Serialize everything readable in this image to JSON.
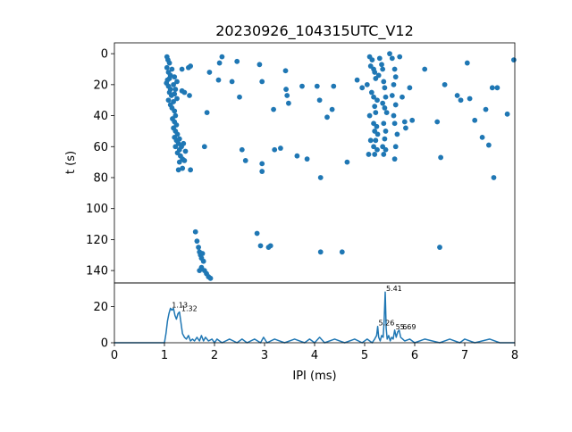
{
  "chart_data": [
    {
      "type": "scatter",
      "title": "20230926_104315UTC_V12",
      "ylabel": "t (s)",
      "xlim": [
        0,
        8
      ],
      "ylim": [
        148,
        -7
      ],
      "y_inverted": true,
      "yticks": [
        0,
        20,
        40,
        60,
        80,
        100,
        120,
        140
      ],
      "color": "#1f77b4",
      "points": [
        [
          1.05,
          2
        ],
        [
          1.07,
          4
        ],
        [
          1.1,
          6
        ],
        [
          1.05,
          9
        ],
        [
          1.08,
          12
        ],
        [
          1.12,
          14
        ],
        [
          1.06,
          17
        ],
        [
          1.04,
          19
        ],
        [
          1.08,
          21
        ],
        [
          1.12,
          23
        ],
        [
          1.15,
          10
        ],
        [
          1.1,
          16
        ],
        [
          1.2,
          15
        ],
        [
          1.25,
          18
        ],
        [
          1.18,
          20
        ],
        [
          1.22,
          23
        ],
        [
          1.1,
          25
        ],
        [
          1.14,
          27
        ],
        [
          1.2,
          26
        ],
        [
          1.25,
          29
        ],
        [
          1.08,
          30
        ],
        [
          1.12,
          33
        ],
        [
          1.18,
          31
        ],
        [
          1.15,
          35
        ],
        [
          1.2,
          37
        ],
        [
          1.22,
          40
        ],
        [
          1.16,
          42
        ],
        [
          1.2,
          44
        ],
        [
          1.24,
          46
        ],
        [
          1.18,
          48
        ],
        [
          1.22,
          50
        ],
        [
          1.26,
          52
        ],
        [
          1.2,
          54
        ],
        [
          1.24,
          56
        ],
        [
          1.3,
          55
        ],
        [
          1.28,
          58
        ],
        [
          1.22,
          60
        ],
        [
          1.3,
          62
        ],
        [
          1.34,
          60
        ],
        [
          1.38,
          58
        ],
        [
          1.26,
          64
        ],
        [
          1.32,
          66
        ],
        [
          1.36,
          68
        ],
        [
          1.3,
          70
        ],
        [
          1.4,
          69
        ],
        [
          1.28,
          75
        ],
        [
          1.36,
          74
        ],
        [
          1.42,
          63
        ],
        [
          1.4,
          25
        ],
        [
          1.35,
          24
        ],
        [
          1.5,
          27
        ],
        [
          1.52,
          8
        ],
        [
          1.48,
          9
        ],
        [
          1.35,
          10
        ],
        [
          1.52,
          75
        ],
        [
          1.8,
          60
        ],
        [
          1.85,
          38
        ],
        [
          1.9,
          12
        ],
        [
          1.62,
          115
        ],
        [
          1.65,
          121
        ],
        [
          1.68,
          125
        ],
        [
          1.7,
          128
        ],
        [
          1.72,
          130
        ],
        [
          1.74,
          132
        ],
        [
          1.76,
          129
        ],
        [
          1.78,
          134
        ],
        [
          1.74,
          138
        ],
        [
          1.8,
          140
        ],
        [
          1.84,
          142
        ],
        [
          1.88,
          144
        ],
        [
          1.92,
          145
        ],
        [
          1.7,
          140
        ],
        [
          2.15,
          2
        ],
        [
          2.1,
          6
        ],
        [
          2.08,
          17
        ],
        [
          2.45,
          5
        ],
        [
          2.35,
          18
        ],
        [
          2.5,
          28
        ],
        [
          2.55,
          62
        ],
        [
          2.62,
          69
        ],
        [
          2.85,
          116
        ],
        [
          2.92,
          124
        ],
        [
          3.08,
          125
        ],
        [
          3.12,
          124
        ],
        [
          2.9,
          7
        ],
        [
          2.95,
          18
        ],
        [
          2.95,
          71
        ],
        [
          2.95,
          76
        ],
        [
          3.18,
          36
        ],
        [
          3.2,
          62
        ],
        [
          3.32,
          61
        ],
        [
          3.48,
          32
        ],
        [
          3.42,
          11
        ],
        [
          3.43,
          23
        ],
        [
          3.45,
          27
        ],
        [
          3.65,
          66
        ],
        [
          3.75,
          21
        ],
        [
          3.85,
          68
        ],
        [
          4.05,
          21
        ],
        [
          4.1,
          30
        ],
        [
          4.25,
          41
        ],
        [
          4.35,
          36
        ],
        [
          4.38,
          21
        ],
        [
          4.55,
          128
        ],
        [
          4.65,
          70
        ],
        [
          4.12,
          80
        ],
        [
          4.12,
          128
        ],
        [
          4.85,
          17
        ],
        [
          4.95,
          22
        ],
        [
          5.05,
          20
        ],
        [
          5.1,
          2
        ],
        [
          5.15,
          4
        ],
        [
          5.12,
          8
        ],
        [
          5.18,
          10
        ],
        [
          5.2,
          12
        ],
        [
          5.22,
          16
        ],
        [
          5.28,
          14
        ],
        [
          5.14,
          25
        ],
        [
          5.18,
          28
        ],
        [
          5.25,
          30
        ],
        [
          5.2,
          34
        ],
        [
          5.22,
          38
        ],
        [
          5.18,
          45
        ],
        [
          5.24,
          47
        ],
        [
          5.2,
          50
        ],
        [
          5.26,
          52
        ],
        [
          5.22,
          56
        ],
        [
          5.18,
          60
        ],
        [
          5.25,
          62
        ],
        [
          5.2,
          65
        ],
        [
          5.08,
          65
        ],
        [
          5.3,
          3
        ],
        [
          5.34,
          7
        ],
        [
          5.36,
          10
        ],
        [
          5.38,
          18
        ],
        [
          5.4,
          22
        ],
        [
          5.42,
          28
        ],
        [
          5.36,
          32
        ],
        [
          5.4,
          35
        ],
        [
          5.44,
          38
        ],
        [
          5.38,
          45
        ],
        [
          5.42,
          50
        ],
        [
          5.4,
          55
        ],
        [
          5.36,
          60
        ],
        [
          5.42,
          62
        ],
        [
          5.38,
          65
        ],
        [
          5.1,
          40
        ],
        [
          5.12,
          56
        ],
        [
          5.5,
          0
        ],
        [
          5.55,
          3
        ],
        [
          5.6,
          10
        ],
        [
          5.62,
          15
        ],
        [
          5.58,
          20
        ],
        [
          5.55,
          27
        ],
        [
          5.62,
          33
        ],
        [
          5.58,
          40
        ],
        [
          5.6,
          45
        ],
        [
          5.65,
          52
        ],
        [
          5.62,
          60
        ],
        [
          5.6,
          68
        ],
        [
          5.7,
          2
        ],
        [
          5.75,
          28
        ],
        [
          5.8,
          44
        ],
        [
          5.82,
          48
        ],
        [
          5.9,
          22
        ],
        [
          5.95,
          43
        ],
        [
          6.2,
          10
        ],
        [
          6.45,
          44
        ],
        [
          6.5,
          125
        ],
        [
          6.52,
          67
        ],
        [
          6.6,
          20
        ],
        [
          6.85,
          27
        ],
        [
          6.92,
          30
        ],
        [
          7.05,
          6
        ],
        [
          7.1,
          29
        ],
        [
          7.2,
          43
        ],
        [
          7.35,
          54
        ],
        [
          7.42,
          36
        ],
        [
          7.48,
          59
        ],
        [
          7.55,
          22
        ],
        [
          7.58,
          80
        ],
        [
          7.65,
          22
        ],
        [
          7.85,
          39
        ],
        [
          7.98,
          4
        ]
      ]
    },
    {
      "type": "line",
      "xlabel": "IPI (ms)",
      "xlim": [
        0,
        8
      ],
      "ylim": [
        0,
        33
      ],
      "xticks": [
        0,
        1,
        2,
        3,
        4,
        5,
        6,
        7,
        8
      ],
      "yticks": [
        0,
        20
      ],
      "color": "#1f77b4",
      "annotations": [
        {
          "x": 1.13,
          "y": 19,
          "text": "1.13"
        },
        {
          "x": 1.32,
          "y": 17,
          "text": "1.32"
        },
        {
          "x": 5.41,
          "y": 28,
          "text": "5.41"
        },
        {
          "x": 5.26,
          "y": 9,
          "text": "5.26"
        },
        {
          "x": 5.6,
          "y": 7,
          "text": "5.6"
        },
        {
          "x": 5.69,
          "y": 7,
          "text": "5.69"
        }
      ],
      "x": [
        0,
        1.0,
        1.03,
        1.06,
        1.09,
        1.12,
        1.15,
        1.18,
        1.21,
        1.24,
        1.27,
        1.3,
        1.33,
        1.36,
        1.4,
        1.44,
        1.48,
        1.52,
        1.56,
        1.6,
        1.65,
        1.7,
        1.74,
        1.78,
        1.82,
        1.88,
        1.95,
        2.0,
        2.05,
        2.15,
        2.3,
        2.45,
        2.55,
        2.65,
        2.8,
        2.92,
        2.98,
        3.05,
        3.2,
        3.4,
        3.6,
        3.8,
        3.9,
        4.0,
        4.1,
        4.2,
        4.4,
        4.6,
        4.8,
        4.95,
        5.05,
        5.15,
        5.2,
        5.24,
        5.26,
        5.28,
        5.31,
        5.34,
        5.37,
        5.39,
        5.41,
        5.43,
        5.45,
        5.48,
        5.51,
        5.54,
        5.57,
        5.6,
        5.63,
        5.66,
        5.69,
        5.72,
        5.76,
        5.8,
        5.9,
        6.0,
        6.2,
        6.5,
        6.7,
        6.9,
        7.0,
        7.2,
        7.5,
        7.7,
        8.0
      ],
      "y": [
        0,
        0,
        5,
        12,
        16,
        19,
        18,
        19,
        15,
        13,
        16,
        17,
        11,
        5,
        3,
        2,
        4,
        1,
        2,
        1,
        3,
        1,
        4,
        1,
        3,
        1,
        2,
        0,
        2,
        0,
        2,
        0,
        2,
        0,
        2,
        0,
        3,
        0,
        2,
        0,
        2,
        0,
        2,
        0,
        3,
        0,
        2,
        0,
        2,
        0,
        2,
        0,
        2,
        4,
        9,
        3,
        1,
        4,
        3,
        12,
        28,
        8,
        2,
        4,
        1,
        3,
        2,
        7,
        3,
        6,
        7,
        3,
        2,
        1,
        2,
        0,
        2,
        0,
        2,
        0,
        2,
        0,
        2,
        0,
        0
      ]
    }
  ]
}
